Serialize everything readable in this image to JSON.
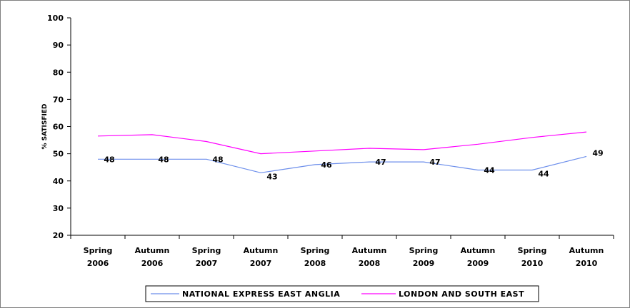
{
  "chart_data": {
    "type": "line",
    "title": "",
    "xlabel": "",
    "ylabel": "% SATISFIED",
    "ylim": [
      20,
      100
    ],
    "yticks": [
      20,
      30,
      40,
      50,
      60,
      70,
      80,
      90,
      100
    ],
    "categories": [
      [
        "Spring",
        "2006"
      ],
      [
        "Autumn",
        "2006"
      ],
      [
        "Spring",
        "2007"
      ],
      [
        "Autumn",
        "2007"
      ],
      [
        "Spring",
        "2008"
      ],
      [
        "Autumn",
        "2008"
      ],
      [
        "Spring",
        "2009"
      ],
      [
        "Autumn",
        "2009"
      ],
      [
        "Spring",
        "2010"
      ],
      [
        "Autumn",
        "2010"
      ]
    ],
    "series": [
      {
        "name": "NATIONAL EXPRESS EAST ANGLIA",
        "color": "#6C8EEB",
        "values": [
          48,
          48,
          48,
          43,
          46,
          47,
          47,
          44,
          44,
          49
        ],
        "labels": [
          "48",
          "48",
          "48",
          "43",
          "46",
          "47",
          "47",
          "44",
          "44",
          "49"
        ]
      },
      {
        "name": "LONDON AND SOUTH EAST",
        "color": "#FF00FF",
        "values": [
          56.5,
          57,
          54.5,
          50,
          51,
          52,
          51.5,
          53.5,
          56,
          58
        ]
      }
    ],
    "grid": false,
    "legend_position": "bottom"
  }
}
